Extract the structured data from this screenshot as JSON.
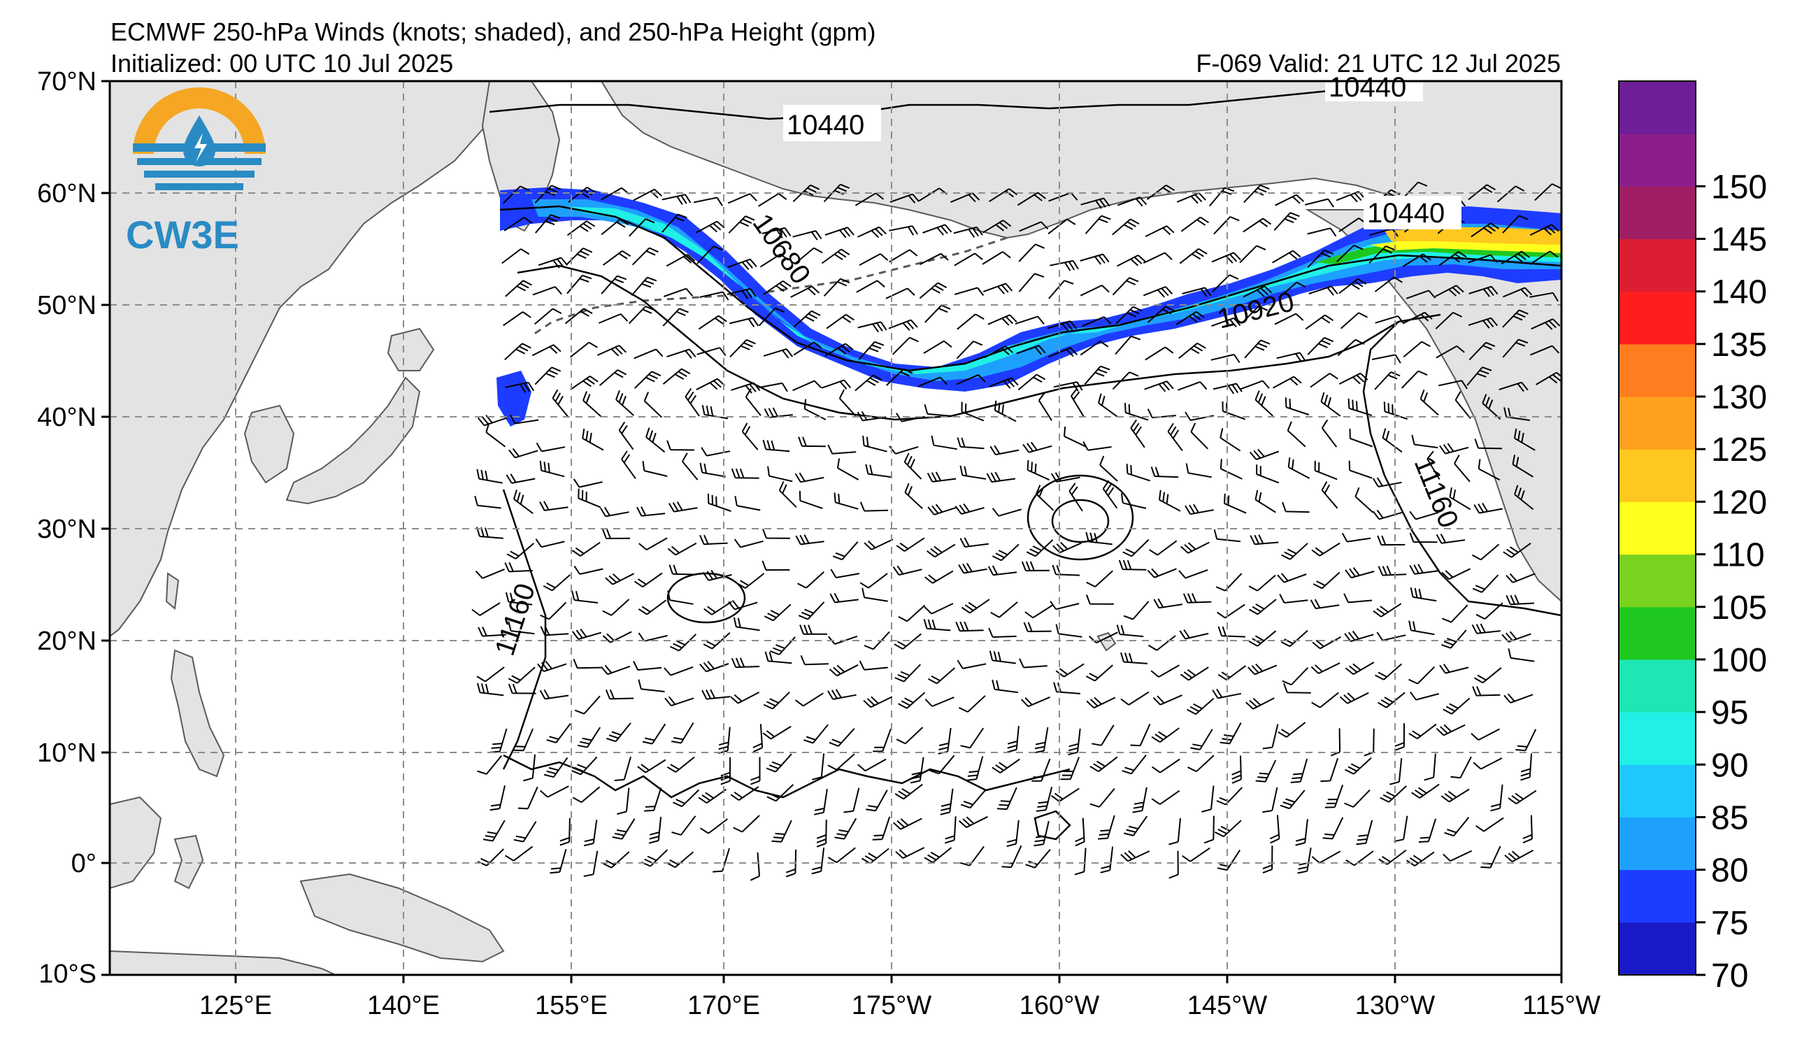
{
  "title": {
    "line1": "ECMWF 250-hPa Winds (knots; shaded), and 250-hPa Height (gpm)",
    "initialized": "Initialized: 00 UTC 10 Jul 2025",
    "valid": "F-069  Valid: 21 UTC 12 Jul 2025"
  },
  "logo": {
    "text": "CW3E",
    "icon": "water-drop-lightning-icon"
  },
  "axes": {
    "lon_labels": [
      "125°E",
      "140°E",
      "155°E",
      "170°E",
      "175°W",
      "160°W",
      "145°W",
      "130°W",
      "115°W"
    ],
    "lat_labels": [
      "70°N",
      "60°N",
      "50°N",
      "40°N",
      "30°N",
      "20°N",
      "10°N",
      "0°",
      "10°S"
    ]
  },
  "contour_labels": [
    {
      "id": "c1",
      "text": "10440"
    },
    {
      "id": "c2",
      "text": "10440"
    },
    {
      "id": "c3",
      "text": "10440"
    },
    {
      "id": "c4",
      "text": "10680"
    },
    {
      "id": "c5",
      "text": "10920"
    },
    {
      "id": "c6",
      "text": "11160"
    },
    {
      "id": "c7",
      "text": "11160"
    }
  ],
  "colorbar": {
    "labels": [
      "70",
      "75",
      "80",
      "85",
      "90",
      "95",
      "100",
      "105",
      "110",
      "120",
      "125",
      "130",
      "135",
      "140",
      "145",
      "150"
    ],
    "colors": [
      "#1a1ac8",
      "#1e3cff",
      "#1ea0ff",
      "#1ec8ff",
      "#20f0e6",
      "#1ee6b4",
      "#1ec81e",
      "#78d21e",
      "#ffff1e",
      "#ffc81e",
      "#ffa01e",
      "#ff7d1e",
      "#ff1e1e",
      "#dc1e32",
      "#a01e64",
      "#8c1e8c",
      "#6e1e96"
    ]
  },
  "colors": {
    "land": "#e3e3e3",
    "coast": "#5a5a5a",
    "grid": "#8c8c8c",
    "logo_orange": "#f5a623",
    "logo_blue": "#2a8bc4"
  }
}
